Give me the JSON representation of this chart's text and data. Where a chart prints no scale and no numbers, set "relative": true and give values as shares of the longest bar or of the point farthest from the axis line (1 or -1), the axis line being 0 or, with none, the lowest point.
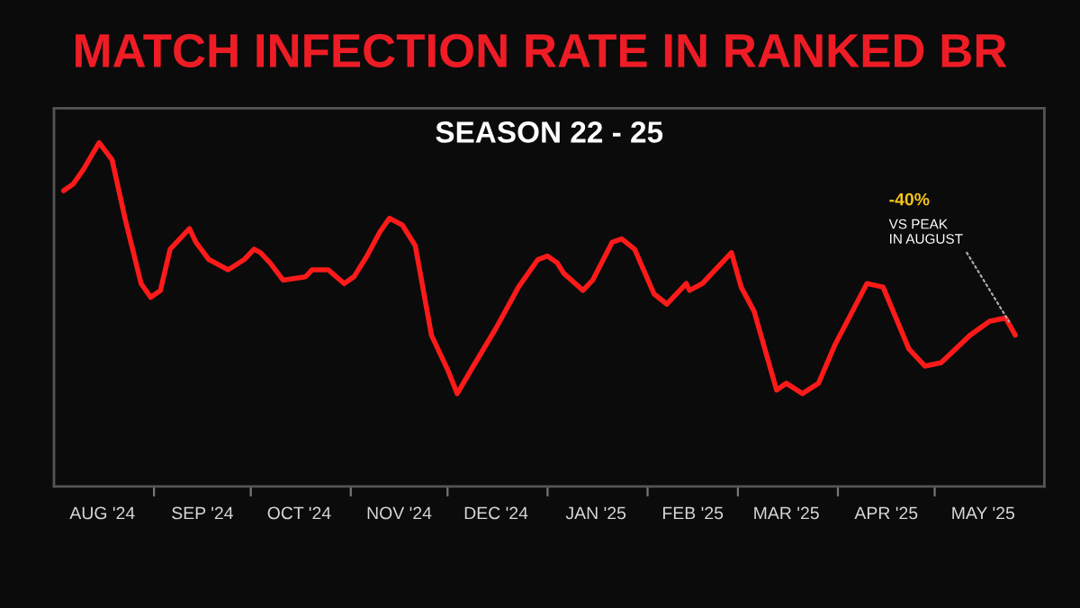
{
  "chart_data": {
    "type": "line",
    "title": "MATCH INFECTION RATE IN RANKED BR",
    "subtitle": "SEASON 22 - 25",
    "relative": true,
    "x": [
      "2024-08-04",
      "2024-08-07",
      "2024-08-10",
      "2024-08-15",
      "2024-08-19",
      "2024-08-23",
      "2024-08-28",
      "2024-08-31",
      "2024-09-03",
      "2024-09-06",
      "2024-09-12",
      "2024-09-14",
      "2024-09-18",
      "2024-09-24",
      "2024-09-29",
      "2024-10-02",
      "2024-10-04",
      "2024-10-07",
      "2024-10-11",
      "2024-10-18",
      "2024-10-20",
      "2024-10-25",
      "2024-10-30",
      "2024-11-02",
      "2024-11-06",
      "2024-11-10",
      "2024-11-13",
      "2024-11-17",
      "2024-11-21",
      "2024-11-26",
      "2024-12-01",
      "2024-12-04",
      "2024-12-09",
      "2024-12-16",
      "2024-12-23",
      "2024-12-29",
      "2025-01-01",
      "2025-01-04",
      "2025-01-06",
      "2025-01-12",
      "2025-01-15",
      "2025-01-21",
      "2025-01-24",
      "2025-01-28",
      "2025-02-03",
      "2025-02-07",
      "2025-02-13",
      "2025-02-14",
      "2025-02-18",
      "2025-02-27",
      "2025-03-02",
      "2025-03-06",
      "2025-03-13",
      "2025-03-16",
      "2025-03-21",
      "2025-03-26",
      "2025-03-31",
      "2025-04-10",
      "2025-04-15",
      "2025-04-23",
      "2025-04-28",
      "2025-05-03",
      "2025-05-12",
      "2025-05-18",
      "2025-05-23",
      "2025-05-26"
    ],
    "series": [
      {
        "color": "#ff1a1a",
        "values": [
          0.86,
          0.88,
          0.92,
          1.0,
          0.95,
          0.78,
          0.59,
          0.55,
          0.57,
          0.69,
          0.75,
          0.71,
          0.66,
          0.63,
          0.66,
          0.69,
          0.68,
          0.65,
          0.6,
          0.61,
          0.63,
          0.63,
          0.59,
          0.61,
          0.67,
          0.74,
          0.78,
          0.76,
          0.7,
          0.44,
          0.34,
          0.27,
          0.35,
          0.46,
          0.58,
          0.66,
          0.67,
          0.65,
          0.62,
          0.57,
          0.6,
          0.71,
          0.72,
          0.69,
          0.56,
          0.53,
          0.59,
          0.57,
          0.59,
          0.68,
          0.58,
          0.51,
          0.28,
          0.3,
          0.27,
          0.3,
          0.41,
          0.59,
          0.58,
          0.4,
          0.35,
          0.36,
          0.44,
          0.48,
          0.49,
          0.44
        ]
      }
    ],
    "xlim": [
      "2024-08-01",
      "2025-06-04"
    ],
    "xticks": [
      {
        "value": "2024-08-16",
        "label": "AUG '24"
      },
      {
        "value": "2024-09-01",
        "label": null
      },
      {
        "value": "2024-09-16",
        "label": "SEP '24"
      },
      {
        "value": "2024-10-01",
        "label": null
      },
      {
        "value": "2024-10-16",
        "label": "OCT '24"
      },
      {
        "value": "2024-11-01",
        "label": null
      },
      {
        "value": "2024-11-16",
        "label": "NOV '24"
      },
      {
        "value": "2024-12-01",
        "label": null
      },
      {
        "value": "2024-12-16",
        "label": "DEC '24"
      },
      {
        "value": "2025-01-01",
        "label": null
      },
      {
        "value": "2025-01-16",
        "label": "JAN '25"
      },
      {
        "value": "2025-02-01",
        "label": null
      },
      {
        "value": "2025-02-15",
        "label": "FEB '25"
      },
      {
        "value": "2025-03-01",
        "label": null
      },
      {
        "value": "2025-03-16",
        "label": "MAR '25"
      },
      {
        "value": "2025-04-01",
        "label": null
      },
      {
        "value": "2025-04-16",
        "label": "APR '25"
      },
      {
        "value": "2025-05-01",
        "label": null
      },
      {
        "value": "2025-05-16",
        "label": "MAY '25"
      }
    ],
    "annotations": [
      {
        "text": "-40%\nVS PEAK\nIN AUGUST",
        "x": "2025-05-24",
        "y": 0.48
      }
    ],
    "grid": false,
    "marker": "none",
    "line_style": "solid"
  }
}
